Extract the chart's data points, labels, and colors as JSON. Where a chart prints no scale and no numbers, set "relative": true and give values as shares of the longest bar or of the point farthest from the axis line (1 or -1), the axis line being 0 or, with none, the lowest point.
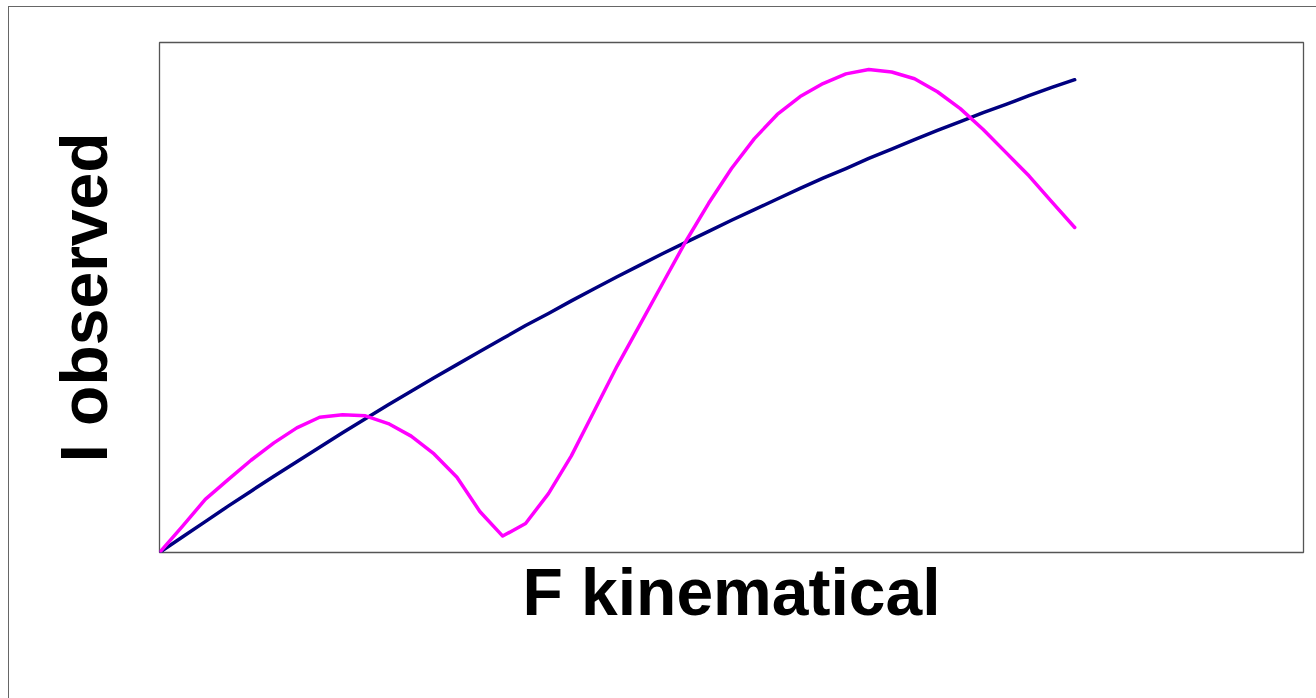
{
  "chart_data": {
    "type": "line",
    "relative": true,
    "xlabel": "F kinematical",
    "ylabel": "I observed",
    "categories": [
      null,
      null,
      null,
      null,
      null,
      null,
      null,
      null,
      null,
      null,
      null,
      null,
      null,
      null,
      null,
      null,
      null,
      null,
      null,
      null,
      null,
      null,
      null,
      null,
      null,
      null,
      null,
      null,
      null,
      null,
      null,
      null,
      null,
      null,
      null,
      null,
      null,
      null,
      null,
      null,
      null,
      null,
      null,
      null,
      null,
      null,
      null,
      null,
      null,
      null,
      null
    ],
    "series": [
      {
        "color": "#000080",
        "values": [
          0,
          0.032,
          0.064,
          0.096,
          0.127,
          0.158,
          0.188,
          0.218,
          0.248,
          0.277,
          0.306,
          0.334,
          0.362,
          0.389,
          0.416,
          0.443,
          0.47,
          0.495,
          0.521,
          0.546,
          0.571,
          0.595,
          0.619,
          0.642,
          0.665,
          0.688,
          0.71,
          0.732,
          0.754,
          0.775,
          0.795,
          0.816,
          0.835,
          0.855,
          0.874,
          0.892,
          0.911,
          0.928,
          0.946,
          0.963,
          0.979,
          null,
          null,
          null,
          null,
          null,
          null,
          null,
          null,
          null,
          null
        ]
      },
      {
        "color": "#ff00ff",
        "values": [
          0,
          0.054,
          0.11,
          0.151,
          0.191,
          0.227,
          0.258,
          0.28,
          0.285,
          0.283,
          0.267,
          0.241,
          0.204,
          0.156,
          0.085,
          0.034,
          0.06,
          0.122,
          0.2,
          0.293,
          0.386,
          0.472,
          0.558,
          0.644,
          0.723,
          0.795,
          0.857,
          0.907,
          0.944,
          0.971,
          0.991,
          1,
          0.995,
          0.981,
          0.954,
          0.919,
          0.876,
          0.828,
          0.78,
          0.726,
          0.673,
          null,
          null,
          null,
          null,
          null,
          null,
          null,
          null,
          null,
          null
        ]
      }
    ]
  }
}
